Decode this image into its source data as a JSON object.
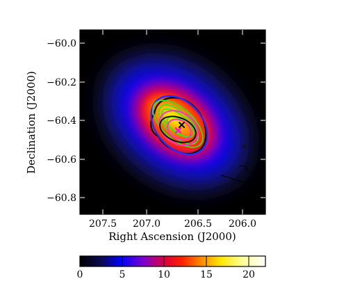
{
  "chart_data": {
    "type": "heatmap",
    "xlabel": "Right Ascension (J2000)",
    "ylabel": "Declination (J2000)",
    "x_ticks": [
      "207.5",
      "207.0",
      "206.5",
      "206.0"
    ],
    "y_ticks": [
      "−60.0",
      "−60.2",
      "−60.4",
      "−60.6",
      "−60.8"
    ],
    "x_tick_values": [
      207.5,
      207.0,
      206.5,
      206.0
    ],
    "y_tick_values": [
      -60.0,
      -60.2,
      -60.4,
      -60.6,
      -60.8
    ],
    "xlim": [
      207.85,
      205.75
    ],
    "ylim": [
      -60.9,
      -59.94
    ],
    "x_inverted": true,
    "colorbar": {
      "colormap": "gist_stern-like (black-blue-purple-red-yellow-white)",
      "range": [
        0,
        22
      ],
      "ticks": [
        0,
        5,
        10,
        15,
        20
      ],
      "tick_labels": [
        "0",
        "5",
        "10",
        "15",
        "20"
      ],
      "orientation": "horizontal",
      "placement": "bottom"
    },
    "emission_peak": {
      "ra": 206.88,
      "dec": -60.44,
      "peak_value": 21
    },
    "contours": [
      {
        "color": "#000000",
        "label": "black"
      },
      {
        "color": "#2a2aff",
        "label": "blue"
      },
      {
        "color": "#22ee22",
        "label": "green"
      },
      {
        "color": "#ff33cc",
        "label": "magenta"
      }
    ],
    "markers": [
      {
        "symbol": "×",
        "color": "#000000",
        "ra": 206.62,
        "dec": -60.4
      },
      {
        "symbol": "×",
        "color": "#ff00ff",
        "ra": 206.67,
        "dec": -60.46
      },
      {
        "symbol": "×",
        "color": "#111111",
        "ra": 205.95,
        "dec": -60.55
      }
    ],
    "grid": false
  }
}
